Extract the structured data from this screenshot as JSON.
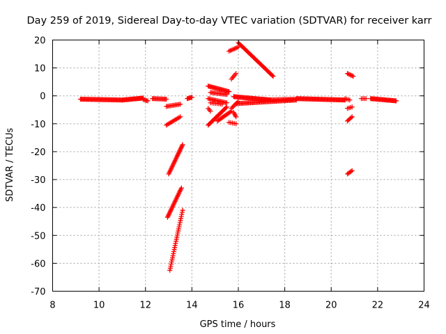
{
  "chart_data": {
    "type": "scatter",
    "title": "Day 259 of 2019, Sidereal Day-to-day VTEC variation (SDTVAR) for receiver karr",
    "xlabel": "GPS time / hours",
    "ylabel": "SDTVAR / TECUs",
    "xlim": [
      8,
      24
    ],
    "ylim": [
      -70,
      20
    ],
    "xticks": [
      "8",
      "10",
      "12",
      "14",
      "16",
      "18",
      "20",
      "22",
      "24"
    ],
    "yticks": [
      "20",
      "10",
      "0",
      "-10",
      "-20",
      "-30",
      "-40",
      "-50",
      "-60",
      "-70"
    ],
    "grid": true,
    "marker": "plus",
    "color": "#ff0000",
    "segments": [
      {
        "name": "baseline-1",
        "x0": 9.2,
        "y0": -1.2,
        "x1": 11.0,
        "y1": -1.5,
        "n": 46
      },
      {
        "name": "baseline-2",
        "x0": 11.0,
        "y0": -1.5,
        "x1": 11.9,
        "y1": -0.8,
        "n": 26
      },
      {
        "name": "baseline-3",
        "x0": 11.9,
        "y0": -1.3,
        "x1": 12.1,
        "y1": -1.8,
        "n": 5
      },
      {
        "name": "baseline-4",
        "x0": 12.3,
        "y0": -1.0,
        "x1": 12.9,
        "y1": -1.2,
        "n": 14
      },
      {
        "name": "baseline-5",
        "x0": 13.8,
        "y0": -1.0,
        "x1": 14.0,
        "y1": -0.5,
        "n": 6
      },
      {
        "name": "baseline-6",
        "x0": 15.8,
        "y0": -0.3,
        "x1": 17.4,
        "y1": -1.5,
        "n": 42
      },
      {
        "name": "baseline-7",
        "x0": 15.9,
        "y0": -2.8,
        "x1": 18.5,
        "y1": -1.5,
        "n": 55
      },
      {
        "name": "baseline-8",
        "x0": 17.0,
        "y0": -1.5,
        "x1": 18.5,
        "y1": -1.2,
        "n": 30
      },
      {
        "name": "baseline-9",
        "x0": 18.5,
        "y0": -1.0,
        "x1": 20.6,
        "y1": -1.5,
        "n": 55
      },
      {
        "name": "baseline-10",
        "x0": 21.3,
        "y0": -1.0,
        "x1": 21.5,
        "y1": -1.0,
        "n": 4
      },
      {
        "name": "baseline-11",
        "x0": 21.7,
        "y0": -1.0,
        "x1": 22.8,
        "y1": -1.8,
        "n": 30
      },
      {
        "name": "arc-a",
        "x0": 12.9,
        "y0": -3.8,
        "x1": 13.5,
        "y1": -3.0,
        "n": 12
      },
      {
        "name": "arc-b",
        "x0": 12.9,
        "y0": -10.5,
        "x1": 13.5,
        "y1": -7.5,
        "n": 12
      },
      {
        "name": "dip-1",
        "x0": 13.0,
        "y0": -28.0,
        "x1": 13.6,
        "y1": -17.5,
        "n": 25
      },
      {
        "name": "dip-2",
        "x0": 12.95,
        "y0": -43.5,
        "x1": 13.55,
        "y1": -33.0,
        "n": 25
      },
      {
        "name": "dip-3",
        "x0": 13.05,
        "y0": -62.5,
        "x1": 13.6,
        "y1": -41.0,
        "n": 30
      },
      {
        "name": "mid-1",
        "x0": 14.7,
        "y0": 3.5,
        "x1": 15.6,
        "y1": 1.5,
        "n": 22
      },
      {
        "name": "mid-2",
        "x0": 14.8,
        "y0": 1.2,
        "x1": 15.5,
        "y1": 0.5,
        "n": 14
      },
      {
        "name": "mid-3",
        "x0": 14.7,
        "y0": -1.0,
        "x1": 15.5,
        "y1": -2.5,
        "n": 16
      },
      {
        "name": "mid-4",
        "x0": 14.8,
        "y0": -2.5,
        "x1": 15.3,
        "y1": -3.0,
        "n": 8
      },
      {
        "name": "mid-5",
        "x0": 14.7,
        "y0": -10.5,
        "x1": 15.5,
        "y1": -4.0,
        "n": 22
      },
      {
        "name": "mid-6",
        "x0": 15.1,
        "y0": -9.0,
        "x1": 15.7,
        "y1": -5.5,
        "n": 14
      },
      {
        "name": "mid-7",
        "x0": 15.6,
        "y0": -9.5,
        "x1": 15.9,
        "y1": -10.0,
        "n": 5
      },
      {
        "name": "mid-8",
        "x0": 15.8,
        "y0": -6.0,
        "x1": 15.9,
        "y1": -7.5,
        "n": 4
      },
      {
        "name": "mid-9",
        "x0": 15.7,
        "y0": -4.5,
        "x1": 16.0,
        "y1": -2.0,
        "n": 7
      },
      {
        "name": "mid-10",
        "x0": 14.7,
        "y0": -4.5,
        "x1": 14.8,
        "y1": -5.5,
        "n": 3
      },
      {
        "name": "high-1",
        "x0": 16.0,
        "y0": 19.0,
        "x1": 17.5,
        "y1": 7.0,
        "n": 40
      },
      {
        "name": "high-2",
        "x0": 15.6,
        "y0": 16.0,
        "x1": 16.0,
        "y1": 17.5,
        "n": 8
      },
      {
        "name": "high-3",
        "x0": 15.7,
        "y0": 6.0,
        "x1": 15.9,
        "y1": 8.0,
        "n": 5
      },
      {
        "name": "right-1",
        "x0": 20.7,
        "y0": 8.0,
        "x1": 20.95,
        "y1": 7.0,
        "n": 6
      },
      {
        "name": "right-2",
        "x0": 20.7,
        "y0": -4.5,
        "x1": 20.9,
        "y1": -4.0,
        "n": 4
      },
      {
        "name": "right-3",
        "x0": 20.7,
        "y0": -9.0,
        "x1": 20.9,
        "y1": -7.5,
        "n": 5
      },
      {
        "name": "right-4",
        "x0": 20.7,
        "y0": -28.0,
        "x1": 20.9,
        "y1": -26.8,
        "n": 5
      },
      {
        "name": "right-5",
        "x0": 20.6,
        "y0": -1.0,
        "x1": 20.8,
        "y1": -1.5,
        "n": 4
      }
    ]
  }
}
